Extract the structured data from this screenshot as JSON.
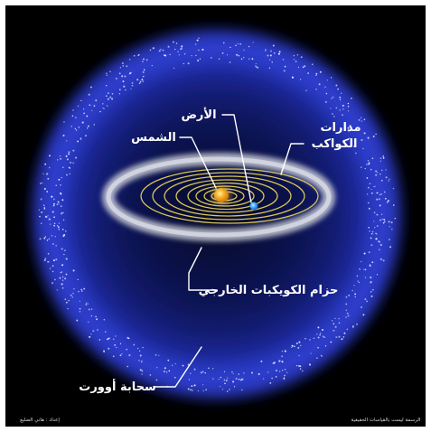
{
  "diagram": {
    "labels": {
      "earth": "الأرض",
      "sun": "الشمس",
      "planet_orbits_line1": "مدارات",
      "planet_orbits_line2": "الكواكب",
      "kuiper_belt": "حزام الكويكبات الخارجي",
      "oort_cloud": "سحابة أوورت"
    },
    "credits": {
      "author": "إعداد : هاني الضليع",
      "scale_note": "الرسمة ليست بالقياسات الحقيقية"
    },
    "colors": {
      "background": "#000000",
      "frame": "#ffffff",
      "oort_glow": "#2a35b8",
      "oort_dots": "#dfe6ff",
      "kuiper_belt": "#c9ccd8",
      "orbits": "#d8c65a",
      "sun": "#f4a21c",
      "earth": "#3aa8ff",
      "text": "#ffffff"
    }
  }
}
